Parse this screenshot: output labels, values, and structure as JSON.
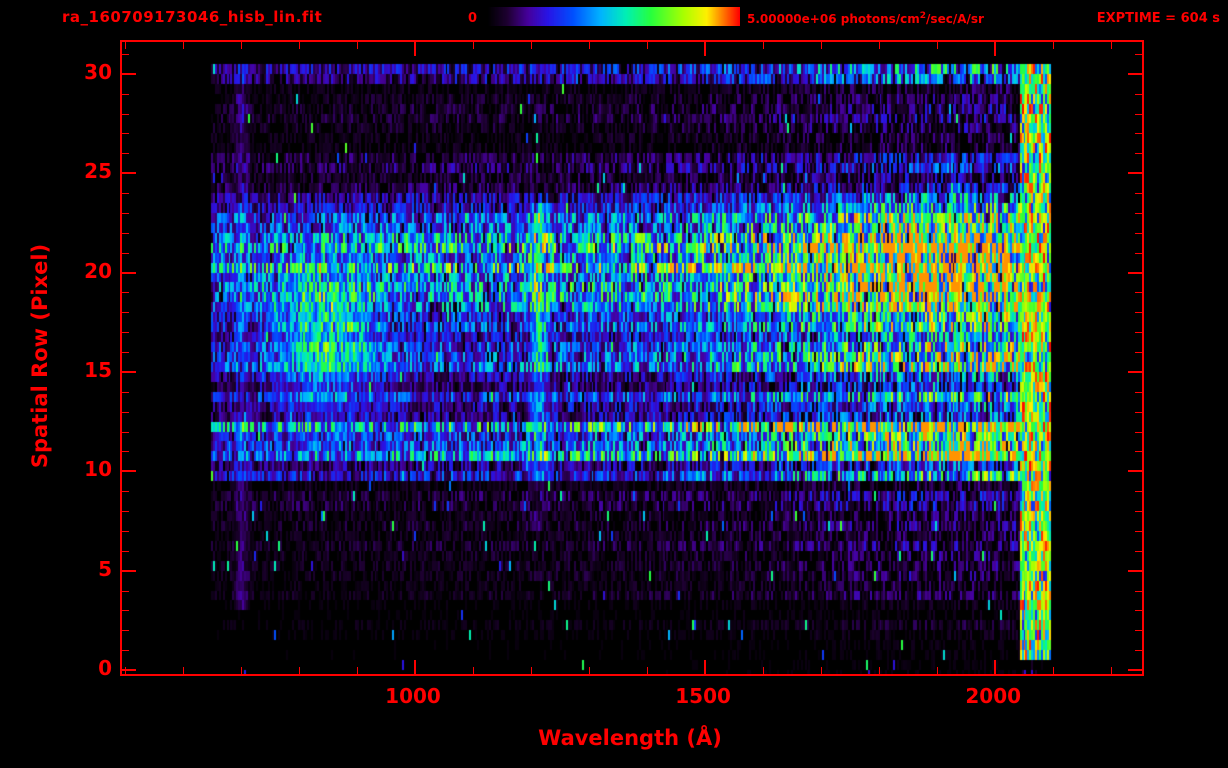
{
  "header": {
    "title": "ra_160709173046_hisb_lin.fit",
    "colorbar": {
      "min_label": "0",
      "max_label_prefix": "5.00000e+06 photons/cm",
      "max_label_sup": "2",
      "max_label_suffix": "/sec/A/sr"
    },
    "exptime_label": "EXPTIME = 604 s"
  },
  "chart_data": {
    "type": "heatmap",
    "title": "ra_160709173046_hisb_lin.fit",
    "xlabel": "Wavelength (Å)",
    "ylabel": "Spatial Row (Pixel)",
    "xlim": [
      495,
      2253
    ],
    "ylim": [
      -0.2,
      31.6
    ],
    "x_ticks": [
      1000,
      1500,
      2000
    ],
    "x_minor_step": 100,
    "y_ticks": [
      0,
      5,
      10,
      15,
      20,
      25,
      30
    ],
    "y_minor_step": 1,
    "colorbar": {
      "min": 0,
      "max": 5000000,
      "max_label": "5.00000e+06",
      "units": "photons/cm2/sec/A/sr"
    },
    "exposure_time_s": 604,
    "axis_color": "#ff0000",
    "background_color": "#000000",
    "data_range": {
      "wavelength_A": [
        648,
        2096
      ],
      "spatial_rows": [
        0,
        30
      ]
    },
    "colormap_stops": [
      [
        0.0,
        "#000000"
      ],
      [
        0.08,
        "#1e0032"
      ],
      [
        0.16,
        "#46009b"
      ],
      [
        0.24,
        "#2814e6"
      ],
      [
        0.34,
        "#0050ff"
      ],
      [
        0.45,
        "#00b4ff"
      ],
      [
        0.55,
        "#00f0b4"
      ],
      [
        0.65,
        "#28ff3c"
      ],
      [
        0.78,
        "#aaff00"
      ],
      [
        0.87,
        "#fff000"
      ],
      [
        0.93,
        "#ff8200"
      ],
      [
        1.0,
        "#ff0000"
      ]
    ],
    "row_intensity_profile": [
      0.02,
      0.04,
      0.05,
      0.05,
      0.12,
      0.1,
      0.15,
      0.12,
      0.18,
      0.15,
      0.4,
      0.75,
      0.75,
      0.35,
      0.45,
      0.5,
      0.5,
      0.45,
      0.6,
      0.8,
      0.8,
      0.75,
      0.65,
      0.55,
      0.3,
      0.22,
      0.16,
      0.16,
      0.16,
      0.16,
      0.3
    ],
    "wavelength_ramp": [
      [
        648,
        0.15
      ],
      [
        1000,
        0.25
      ],
      [
        1400,
        0.35
      ],
      [
        1600,
        0.55
      ],
      [
        1800,
        0.9
      ],
      [
        1900,
        1.0
      ],
      [
        2096,
        1.0
      ]
    ],
    "features": [
      {
        "name": "lyman-alpha-line",
        "wavelength": 1212,
        "sigma": 10,
        "rows": [
          10,
          23
        ],
        "amplitude": 0.35
      },
      {
        "name": "blue-blob",
        "wavelength": 845,
        "sigma": 60,
        "row_center": 16.5,
        "row_sigma": 2.5,
        "amplitude": 0.38
      },
      {
        "name": "detector-edge-column",
        "wavelength_range": [
          2042,
          2096
        ],
        "amplitude": 1.0
      },
      {
        "name": "faint-left-column",
        "wavelength": 700,
        "sigma": 8,
        "amplitude": 0.1
      }
    ],
    "noise_seed": 1234567
  }
}
